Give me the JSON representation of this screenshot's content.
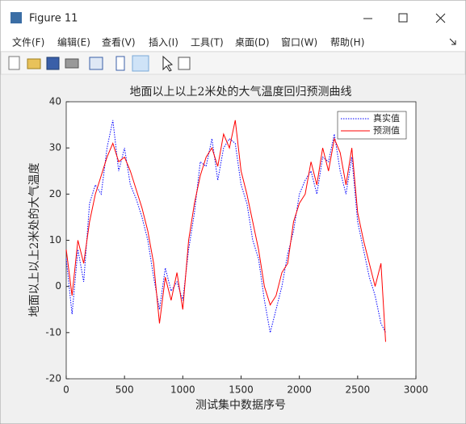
{
  "window": {
    "title": "Figure 11",
    "menu": [
      "文件(F)",
      "编辑(E)",
      "查看(V)",
      "插入(I)",
      "工具(T)",
      "桌面(D)",
      "窗口(W)",
      "帮助(H)"
    ]
  },
  "chart_data": {
    "type": "line",
    "title": "地面以上以上2米处的大气温度回归预测曲线",
    "x_label": "测试集中数据序号",
    "y_label": "地面以上以上2米处的大气温度",
    "x": [
      0,
      50,
      100,
      150,
      200,
      250,
      300,
      350,
      400,
      450,
      500,
      550,
      600,
      650,
      700,
      750,
      800,
      850,
      900,
      950,
      1000,
      1050,
      1100,
      1150,
      1200,
      1250,
      1300,
      1350,
      1400,
      1450,
      1500,
      1550,
      1600,
      1650,
      1700,
      1750,
      1800,
      1850,
      1900,
      1950,
      2000,
      2050,
      2100,
      2150,
      2200,
      2250,
      2300,
      2350,
      2400,
      2450,
      2500,
      2550,
      2600,
      2650,
      2700,
      2740
    ],
    "series": [
      {
        "name": "真实值",
        "color": "#0000ff",
        "linestyle": "dotted",
        "values": [
          6,
          -6,
          8,
          1,
          18,
          22,
          20,
          30,
          36,
          25,
          30,
          22,
          19,
          15,
          10,
          2,
          -5,
          4,
          -1,
          1,
          -3,
          8,
          16,
          27,
          26,
          32,
          23,
          30,
          32,
          31,
          22,
          18,
          10,
          6,
          -3,
          -10,
          -5,
          0,
          7,
          12,
          20,
          23,
          25,
          20,
          28,
          27,
          33,
          25,
          20,
          28,
          14,
          8,
          2,
          -2,
          -8,
          -10
        ]
      },
      {
        "name": "预测值",
        "color": "#ff0000",
        "linestyle": "solid",
        "values": [
          8,
          -2,
          10,
          5,
          14,
          20,
          24,
          28,
          31,
          27,
          28,
          25,
          21,
          17,
          12,
          5,
          -8,
          2,
          -3,
          3,
          -5,
          10,
          18,
          24,
          28,
          30,
          26,
          33,
          30,
          36,
          25,
          20,
          14,
          8,
          0,
          -4,
          -2,
          3,
          5,
          14,
          18,
          20,
          27,
          22,
          30,
          25,
          32,
          29,
          22,
          30,
          16,
          10,
          5,
          0,
          5,
          -12
        ]
      }
    ],
    "xlim": [
      0,
      3000
    ],
    "xticks": [
      0,
      500,
      1000,
      1500,
      2000,
      2500,
      3000
    ],
    "ylim": [
      -20,
      40
    ],
    "yticks": [
      -20,
      -10,
      0,
      10,
      20,
      30,
      40
    ],
    "grid": false,
    "legend": "northeast"
  }
}
